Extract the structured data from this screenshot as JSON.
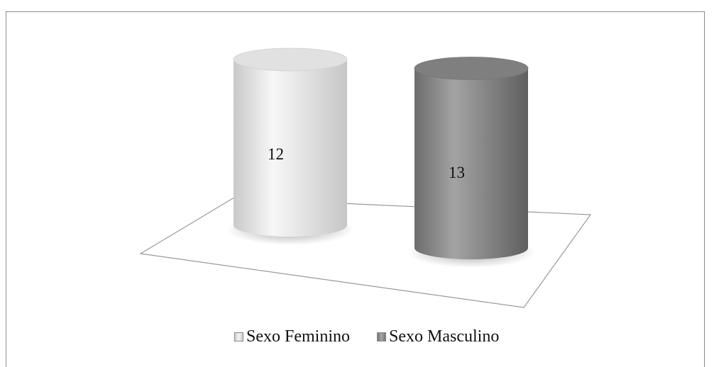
{
  "chart_data": {
    "type": "bar",
    "style": "3d-cylinder",
    "categories": [
      "Sexo Feminino",
      "Sexo Masculino"
    ],
    "values": [
      12,
      13
    ],
    "data_labels": [
      "12",
      "13"
    ],
    "colors": [
      "#e3e3e3",
      "#8a8a8a"
    ],
    "legend": {
      "position": "bottom",
      "entries": [
        "Sexo Feminino",
        "Sexo Masculino"
      ]
    },
    "grid": false
  }
}
